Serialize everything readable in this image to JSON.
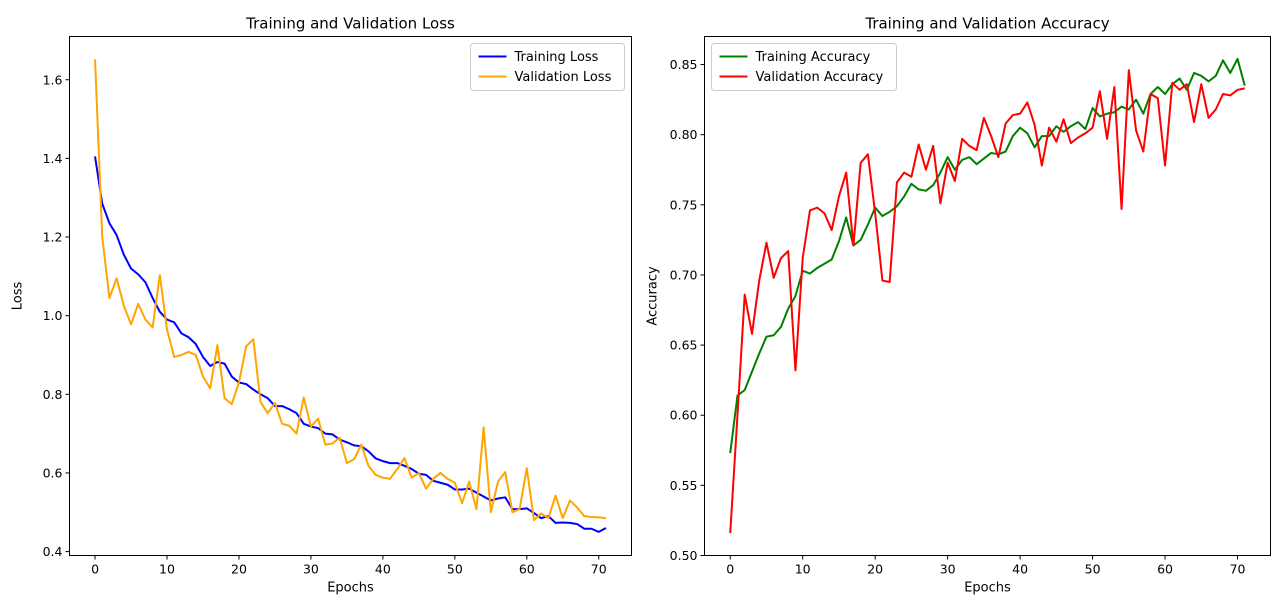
{
  "chart_data": [
    {
      "type": "line",
      "title": "Training and Validation Loss",
      "xlabel": "Epochs",
      "ylabel": "Loss",
      "xlim": [
        -3.55,
        74.55
      ],
      "ylim": [
        0.39,
        1.71
      ],
      "xticks": [
        0,
        10,
        20,
        30,
        40,
        50,
        60,
        70
      ],
      "yticks": [
        0.4,
        0.6,
        0.8,
        1.0,
        1.2,
        1.4,
        1.6
      ],
      "ytick_labels": [
        "0.4",
        "0.6",
        "0.8",
        "1.0",
        "1.2",
        "1.4",
        "1.6"
      ],
      "legend_position": "top-right",
      "grid": false,
      "x": [
        0,
        1,
        2,
        3,
        4,
        5,
        6,
        7,
        8,
        9,
        10,
        11,
        12,
        13,
        14,
        15,
        16,
        17,
        18,
        19,
        20,
        21,
        22,
        23,
        24,
        25,
        26,
        27,
        28,
        29,
        30,
        31,
        32,
        33,
        34,
        35,
        36,
        37,
        38,
        39,
        40,
        41,
        42,
        43,
        44,
        45,
        46,
        47,
        48,
        49,
        50,
        51,
        52,
        53,
        54,
        55,
        56,
        57,
        58,
        59,
        60,
        61,
        62,
        63,
        64,
        65,
        66,
        67,
        68,
        69,
        70,
        71
      ],
      "series": [
        {
          "name": "Training Loss",
          "color": "#0000ff",
          "values": [
            1.405,
            1.285,
            1.235,
            1.205,
            1.155,
            1.12,
            1.105,
            1.085,
            1.045,
            1.01,
            0.99,
            0.983,
            0.955,
            0.945,
            0.928,
            0.895,
            0.872,
            0.882,
            0.878,
            0.845,
            0.83,
            0.826,
            0.812,
            0.8,
            0.79,
            0.77,
            0.77,
            0.762,
            0.752,
            0.725,
            0.718,
            0.714,
            0.7,
            0.698,
            0.685,
            0.678,
            0.67,
            0.668,
            0.655,
            0.637,
            0.63,
            0.625,
            0.625,
            0.618,
            0.61,
            0.598,
            0.595,
            0.58,
            0.575,
            0.57,
            0.558,
            0.558,
            0.56,
            0.55,
            0.54,
            0.53,
            0.535,
            0.538,
            0.508,
            0.508,
            0.51,
            0.498,
            0.485,
            0.49,
            0.473,
            0.474,
            0.473,
            0.47,
            0.458,
            0.458,
            0.45,
            0.46
          ]
        },
        {
          "name": "Validation Loss",
          "color": "#ffa500",
          "values": [
            1.652,
            1.2,
            1.045,
            1.095,
            1.025,
            0.978,
            1.03,
            0.99,
            0.97,
            1.103,
            0.965,
            0.895,
            0.9,
            0.908,
            0.9,
            0.845,
            0.815,
            0.925,
            0.79,
            0.775,
            0.83,
            0.922,
            0.94,
            0.78,
            0.752,
            0.778,
            0.725,
            0.72,
            0.7,
            0.792,
            0.718,
            0.738,
            0.672,
            0.675,
            0.69,
            0.625,
            0.635,
            0.672,
            0.618,
            0.595,
            0.588,
            0.585,
            0.61,
            0.638,
            0.588,
            0.6,
            0.56,
            0.585,
            0.6,
            0.585,
            0.575,
            0.523,
            0.578,
            0.508,
            0.716,
            0.5,
            0.578,
            0.602,
            0.5,
            0.508,
            0.612,
            0.48,
            0.497,
            0.485,
            0.542,
            0.485,
            0.53,
            0.512,
            0.49,
            0.488,
            0.487,
            0.485
          ]
        }
      ]
    },
    {
      "type": "line",
      "title": "Training and Validation Accuracy",
      "xlabel": "Epochs",
      "ylabel": "Accuracy",
      "xlim": [
        -3.55,
        74.55
      ],
      "ylim": [
        0.5,
        0.87
      ],
      "xticks": [
        0,
        10,
        20,
        30,
        40,
        50,
        60,
        70
      ],
      "yticks": [
        0.5,
        0.55,
        0.6,
        0.65,
        0.7,
        0.75,
        0.8,
        0.85
      ],
      "ytick_labels": [
        "0.50",
        "0.55",
        "0.60",
        "0.65",
        "0.70",
        "0.75",
        "0.80",
        "0.85"
      ],
      "legend_position": "top-left",
      "grid": false,
      "x": [
        0,
        1,
        2,
        3,
        4,
        5,
        6,
        7,
        8,
        9,
        10,
        11,
        12,
        13,
        14,
        15,
        16,
        17,
        18,
        19,
        20,
        21,
        22,
        23,
        24,
        25,
        26,
        27,
        28,
        29,
        30,
        31,
        32,
        33,
        34,
        35,
        36,
        37,
        38,
        39,
        40,
        41,
        42,
        43,
        44,
        45,
        46,
        47,
        48,
        49,
        50,
        51,
        52,
        53,
        54,
        55,
        56,
        57,
        58,
        59,
        60,
        61,
        62,
        63,
        64,
        65,
        66,
        67,
        68,
        69,
        70,
        71
      ],
      "series": [
        {
          "name": "Training Accuracy",
          "color": "#008000",
          "values": [
            0.573,
            0.614,
            0.618,
            0.631,
            0.644,
            0.656,
            0.657,
            0.663,
            0.676,
            0.685,
            0.703,
            0.701,
            0.705,
            0.708,
            0.711,
            0.724,
            0.741,
            0.721,
            0.725,
            0.736,
            0.748,
            0.742,
            0.745,
            0.749,
            0.756,
            0.765,
            0.761,
            0.76,
            0.764,
            0.773,
            0.784,
            0.775,
            0.782,
            0.784,
            0.779,
            0.783,
            0.787,
            0.786,
            0.788,
            0.799,
            0.805,
            0.801,
            0.791,
            0.799,
            0.799,
            0.806,
            0.802,
            0.806,
            0.809,
            0.804,
            0.819,
            0.813,
            0.815,
            0.816,
            0.82,
            0.818,
            0.825,
            0.815,
            0.829,
            0.834,
            0.829,
            0.836,
            0.84,
            0.832,
            0.844,
            0.842,
            0.838,
            0.842,
            0.853,
            0.844,
            0.854,
            0.835
          ]
        },
        {
          "name": "Validation Accuracy",
          "color": "#ff0000",
          "values": [
            0.516,
            0.6,
            0.686,
            0.658,
            0.696,
            0.723,
            0.698,
            0.712,
            0.717,
            0.632,
            0.712,
            0.746,
            0.748,
            0.744,
            0.732,
            0.756,
            0.773,
            0.721,
            0.78,
            0.786,
            0.744,
            0.696,
            0.695,
            0.766,
            0.773,
            0.77,
            0.793,
            0.775,
            0.792,
            0.751,
            0.78,
            0.767,
            0.797,
            0.792,
            0.789,
            0.812,
            0.799,
            0.784,
            0.808,
            0.814,
            0.815,
            0.823,
            0.807,
            0.778,
            0.805,
            0.795,
            0.811,
            0.794,
            0.798,
            0.801,
            0.805,
            0.831,
            0.797,
            0.834,
            0.747,
            0.846,
            0.803,
            0.788,
            0.829,
            0.826,
            0.778,
            0.837,
            0.832,
            0.836,
            0.809,
            0.836,
            0.812,
            0.818,
            0.829,
            0.828,
            0.832,
            0.833
          ]
        }
      ]
    }
  ]
}
